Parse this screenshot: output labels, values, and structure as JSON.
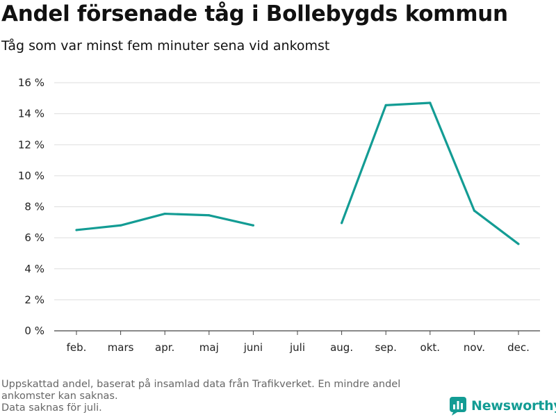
{
  "title": "Andel försenade tåg i Bollebygds kommun",
  "subtitle": "Tåg som var minst fem minuter sena vid ankomst",
  "notes": [
    "Uppskattad andel, baserat på insamlad data från Trafikverket. En mindre andel",
    "ankomster kan saknas.",
    "Data saknas för juli."
  ],
  "brand": {
    "name": "Newsworthy",
    "icon": "newsworthy-logo-icon",
    "color": "#139c94"
  },
  "chart_data": {
    "type": "line",
    "title": "Andel försenade tåg i Bollebygds kommun",
    "subtitle": "Tåg som var minst fem minuter sena vid ankomst",
    "xlabel": "",
    "ylabel": "",
    "categories": [
      "feb.",
      "mars",
      "apr.",
      "maj",
      "juni",
      "juli",
      "aug.",
      "sep.",
      "okt.",
      "nov.",
      "dec."
    ],
    "series": [
      {
        "color": "#139c94",
        "values": [
          6.5,
          6.8,
          7.55,
          7.45,
          6.8,
          null,
          6.95,
          14.55,
          14.7,
          7.75,
          5.6
        ]
      }
    ],
    "ylim": [
      0,
      16
    ],
    "yticks": [
      0,
      2,
      4,
      6,
      8,
      10,
      12,
      14,
      16
    ],
    "ytick_labels": [
      "0 %",
      "2 %",
      "4 %",
      "6 %",
      "8 %",
      "10 %",
      "12 %",
      "14 %",
      "16 %"
    ],
    "grid": true,
    "legend": "none"
  }
}
